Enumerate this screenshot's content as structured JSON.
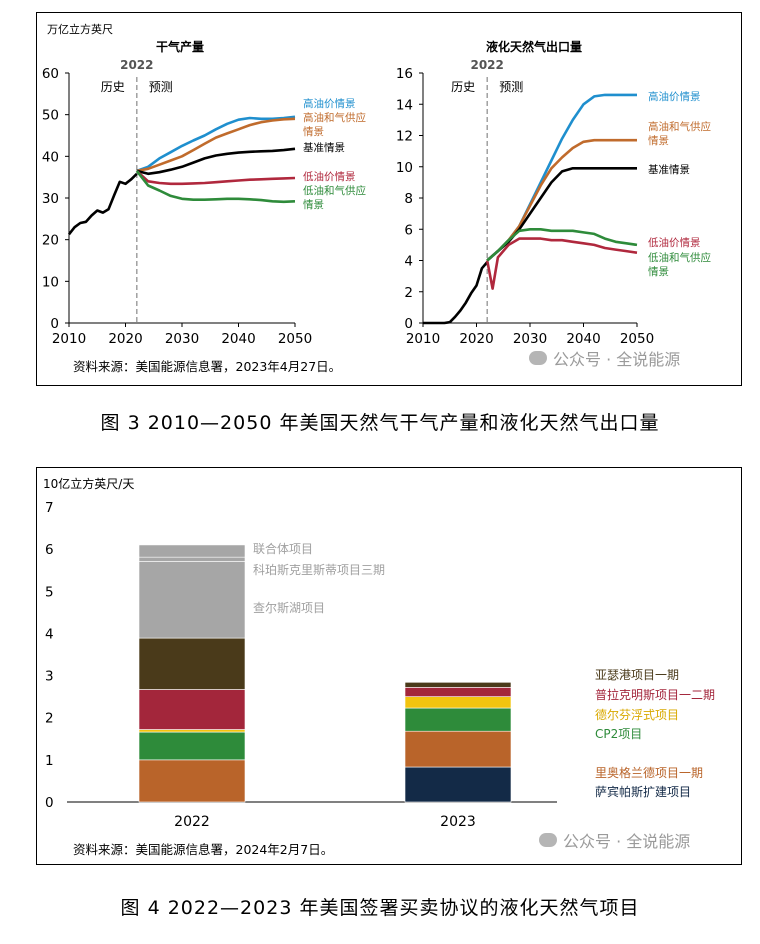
{
  "figure1": {
    "unit": "万亿立方英尺",
    "caption": "图 3  2010—2050 年美国天然气干气产量和液化天然气出口量",
    "source": "资料来源：美国能源信息署，2023年4月27日。",
    "watermark": "公众号 · 全说能源",
    "divider_year": "2022",
    "history_label": "历史",
    "forecast_label": "预测"
  },
  "figure2": {
    "unit": "10亿立方英尺/天",
    "caption": "图 4  2022—2023 年美国签署买卖协议的液化天然气项目",
    "source": "资料来源：美国能源信息署，2024年2月7日。",
    "watermark": "公众号 · 全说能源"
  },
  "chart_data": [
    {
      "type": "line",
      "title": "干气产量",
      "ylim": [
        0,
        60
      ],
      "yticks": [
        0,
        10,
        20,
        30,
        40,
        50,
        60
      ],
      "xticks": [
        2010,
        2020,
        2030,
        2040,
        2050
      ],
      "xlim": [
        2010,
        2050
      ],
      "grid": false,
      "series": [
        {
          "name": "历史",
          "color": "#000000",
          "x": [
            2010,
            2011,
            2012,
            2013,
            2014,
            2015,
            2016,
            2017,
            2018,
            2019,
            2020,
            2021,
            2022
          ],
          "y": [
            21.3,
            23.0,
            24.0,
            24.3,
            25.8,
            27.0,
            26.5,
            27.3,
            30.7,
            33.9,
            33.4,
            34.5,
            35.8
          ]
        },
        {
          "name": "高油价情景",
          "color": "#1f8fce",
          "x": [
            2022,
            2024,
            2026,
            2028,
            2030,
            2032,
            2034,
            2036,
            2038,
            2040,
            2042,
            2044,
            2046,
            2048,
            2050
          ],
          "y": [
            36.5,
            37.5,
            39.5,
            41.0,
            42.5,
            43.8,
            45.0,
            46.5,
            47.8,
            48.8,
            49.2,
            49.0,
            49.0,
            49.2,
            49.5
          ]
        },
        {
          "name": "高油和气供应情景",
          "color": "#c06b2c",
          "x": [
            2022,
            2024,
            2026,
            2028,
            2030,
            2032,
            2034,
            2036,
            2038,
            2040,
            2042,
            2044,
            2046,
            2048,
            2050
          ],
          "y": [
            36.5,
            37.0,
            38.0,
            39.0,
            40.0,
            41.5,
            43.0,
            44.5,
            45.5,
            46.5,
            47.5,
            48.2,
            48.6,
            48.9,
            49.0
          ]
        },
        {
          "name": "基准情景",
          "color": "#000000",
          "x": [
            2022,
            2024,
            2026,
            2028,
            2030,
            2032,
            2034,
            2036,
            2038,
            2040,
            2042,
            2044,
            2046,
            2048,
            2050
          ],
          "y": [
            36.5,
            35.8,
            36.2,
            36.8,
            37.5,
            38.5,
            39.5,
            40.2,
            40.6,
            40.9,
            41.1,
            41.2,
            41.3,
            41.5,
            41.8
          ]
        },
        {
          "name": "低油价情景",
          "color": "#b0283d",
          "x": [
            2022,
            2024,
            2026,
            2028,
            2030,
            2032,
            2034,
            2036,
            2038,
            2040,
            2042,
            2044,
            2046,
            2048,
            2050
          ],
          "y": [
            36.5,
            34.0,
            33.6,
            33.4,
            33.4,
            33.5,
            33.6,
            33.8,
            34.0,
            34.2,
            34.4,
            34.5,
            34.6,
            34.7,
            34.8
          ]
        },
        {
          "name": "低油和气供应情景",
          "color": "#2e8b3a",
          "x": [
            2022,
            2024,
            2026,
            2028,
            2030,
            2032,
            2034,
            2036,
            2038,
            2040,
            2042,
            2044,
            2046,
            2048,
            2050
          ],
          "y": [
            36.5,
            33.0,
            31.8,
            30.5,
            29.8,
            29.6,
            29.6,
            29.7,
            29.8,
            29.8,
            29.7,
            29.5,
            29.2,
            29.1,
            29.2
          ]
        }
      ],
      "labels": [
        {
          "text": "高油价情景",
          "color": "#1f8fce"
        },
        {
          "text": "高油和气供应",
          "color": "#c06b2c"
        },
        {
          "text": "情景",
          "color": "#c06b2c"
        },
        {
          "text": "基准情景",
          "color": "#000000"
        },
        {
          "text": "低油价情景",
          "color": "#b0283d"
        },
        {
          "text": "低油和气供应",
          "color": "#2e8b3a"
        },
        {
          "text": "情景",
          "color": "#2e8b3a"
        }
      ]
    },
    {
      "type": "line",
      "title": "液化天然气出口量",
      "ylim": [
        0,
        16
      ],
      "yticks": [
        0,
        2,
        4,
        6,
        8,
        10,
        12,
        14,
        16
      ],
      "xticks": [
        2010,
        2020,
        2030,
        2040,
        2050
      ],
      "xlim": [
        2010,
        2050
      ],
      "grid": false,
      "series": [
        {
          "name": "历史",
          "color": "#000000",
          "x": [
            2010,
            2012,
            2014,
            2015,
            2016,
            2017,
            2018,
            2019,
            2020,
            2021,
            2022
          ],
          "y": [
            0.0,
            0.0,
            0.0,
            0.05,
            0.4,
            0.8,
            1.3,
            1.9,
            2.4,
            3.5,
            3.9
          ]
        },
        {
          "name": "高油价情景",
          "color": "#1f8fce",
          "x": [
            2022,
            2024,
            2026,
            2028,
            2030,
            2032,
            2034,
            2036,
            2038,
            2040,
            2042,
            2044,
            2046,
            2048,
            2050
          ],
          "y": [
            4.0,
            4.6,
            5.3,
            6.2,
            7.6,
            9.0,
            10.4,
            11.8,
            13.0,
            14.0,
            14.5,
            14.6,
            14.6,
            14.6,
            14.6
          ]
        },
        {
          "name": "高油和气供应情景",
          "color": "#c06b2c",
          "x": [
            2022,
            2024,
            2026,
            2028,
            2030,
            2032,
            2034,
            2036,
            2038,
            2040,
            2042,
            2044,
            2046,
            2048,
            2050
          ],
          "y": [
            4.0,
            4.6,
            5.3,
            6.2,
            7.5,
            8.8,
            9.9,
            10.6,
            11.2,
            11.6,
            11.7,
            11.7,
            11.7,
            11.7,
            11.7
          ]
        },
        {
          "name": "基准情景",
          "color": "#000000",
          "x": [
            2022,
            2024,
            2026,
            2028,
            2030,
            2032,
            2034,
            2036,
            2038,
            2040,
            2042,
            2044,
            2046,
            2048,
            2050
          ],
          "y": [
            4.0,
            4.6,
            5.2,
            6.0,
            7.0,
            8.0,
            9.0,
            9.7,
            9.9,
            9.9,
            9.9,
            9.9,
            9.9,
            9.9,
            9.9
          ]
        },
        {
          "name": "低油价情景",
          "color": "#b0283d",
          "x": [
            2022,
            2023,
            2024,
            2026,
            2028,
            2030,
            2032,
            2034,
            2036,
            2038,
            2040,
            2042,
            2044,
            2046,
            2048,
            2050
          ],
          "y": [
            4.0,
            2.2,
            4.2,
            5.0,
            5.4,
            5.4,
            5.4,
            5.3,
            5.3,
            5.2,
            5.1,
            5.0,
            4.8,
            4.7,
            4.6,
            4.5
          ]
        },
        {
          "name": "低油和气供应情景",
          "color": "#2e8b3a",
          "x": [
            2022,
            2024,
            2026,
            2028,
            2030,
            2032,
            2034,
            2036,
            2038,
            2040,
            2042,
            2044,
            2046,
            2048,
            2050
          ],
          "y": [
            4.0,
            4.6,
            5.3,
            5.9,
            6.0,
            6.0,
            5.9,
            5.9,
            5.9,
            5.8,
            5.7,
            5.4,
            5.2,
            5.1,
            5.0
          ]
        }
      ],
      "labels": [
        {
          "text": "高油价情景",
          "color": "#1f8fce"
        },
        {
          "text": "高油和气供应",
          "color": "#c06b2c"
        },
        {
          "text": "情景",
          "color": "#c06b2c"
        },
        {
          "text": "基准情景",
          "color": "#000000"
        },
        {
          "text": "低油价情景",
          "color": "#b0283d"
        },
        {
          "text": "低油和气供应",
          "color": "#2e8b3a"
        },
        {
          "text": "情景",
          "color": "#2e8b3a"
        }
      ]
    },
    {
      "type": "bar",
      "stacked": true,
      "categories": [
        "2022",
        "2023"
      ],
      "ylim": [
        0,
        7
      ],
      "yticks": [
        0,
        1,
        2,
        3,
        4,
        5,
        6,
        7
      ],
      "series": [
        {
          "name": "里奥格兰德项目一期",
          "color": "#b9642a",
          "values": [
            1.0,
            0.0
          ]
        },
        {
          "name": "萨宾帕斯扩建项目",
          "color": "#132a47",
          "values": [
            0.0,
            0.83
          ]
        },
        {
          "name": "里奥格兰德项目一期",
          "color": "#b9642a",
          "values": [
            0.0,
            0.85
          ]
        },
        {
          "name": "CP2项目",
          "color": "#2e8b3a",
          "values": [
            0.66,
            0.55
          ]
        },
        {
          "name": "德尔芬浮式项目",
          "color": "#f2c40f",
          "values": [
            0.06,
            0.27
          ]
        },
        {
          "name": "普拉克明斯项目一二期",
          "color": "#a3263b",
          "values": [
            0.95,
            0.22
          ]
        },
        {
          "name": "亚瑟港项目一期",
          "color": "#4a3a1a",
          "values": [
            1.22,
            0.12
          ]
        },
        {
          "name": "查尔斯湖项目",
          "color": "#a6a6a6",
          "values": [
            1.82,
            0.0
          ]
        },
        {
          "name": "科珀斯克里斯蒂项目三期",
          "color": "#a6a6a6",
          "values": [
            0.1,
            0.0
          ]
        },
        {
          "name": "联合体项目",
          "color": "#a6a6a6",
          "values": [
            0.29,
            0.0
          ]
        }
      ],
      "labels_2022": [
        {
          "text": "联合体项目"
        },
        {
          "text": "科珀斯克里斯蒂项目三期"
        },
        {
          "text": "查尔斯湖项目"
        }
      ],
      "labels_2023": [
        {
          "text": "亚瑟港项目一期",
          "color": "#4a3a1a"
        },
        {
          "text": "普拉克明斯项目一二期",
          "color": "#a3263b"
        },
        {
          "text": "德尔芬浮式项目",
          "color": "#d9a900"
        },
        {
          "text": "CP2项目",
          "color": "#2e8b3a"
        },
        {
          "text": "里奥格兰德项目一期",
          "color": "#b9642a"
        },
        {
          "text": "萨宾帕斯扩建项目",
          "color": "#132a47"
        }
      ]
    }
  ]
}
